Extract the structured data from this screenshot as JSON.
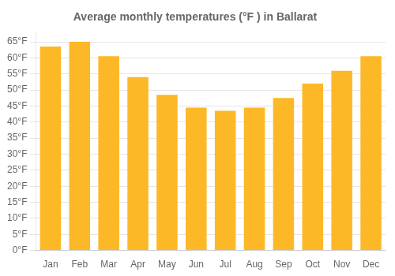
{
  "chart_data": {
    "type": "bar",
    "title": "Average monthly temperatures (°F ) in Ballarat",
    "categories": [
      "Jan",
      "Feb",
      "Mar",
      "Apr",
      "May",
      "Jun",
      "Jul",
      "Aug",
      "Sep",
      "Oct",
      "Nov",
      "Dec"
    ],
    "values": [
      63.5,
      65.0,
      60.5,
      54.0,
      48.5,
      44.5,
      43.5,
      44.5,
      47.5,
      52.0,
      56.0,
      60.5
    ],
    "color": "#FDB827",
    "ylim": [
      0,
      68
    ],
    "yticks": [
      {
        "value": 0,
        "label": "0°F"
      },
      {
        "value": 5,
        "label": "5°F"
      },
      {
        "value": 10,
        "label": "10°F"
      },
      {
        "value": 15,
        "label": "15°F"
      },
      {
        "value": 20,
        "label": "20°F"
      },
      {
        "value": 25,
        "label": "25°F"
      },
      {
        "value": 30,
        "label": "30°F"
      },
      {
        "value": 35,
        "label": "35°F"
      },
      {
        "value": 40,
        "label": "40°F"
      },
      {
        "value": 45,
        "label": "45°F"
      },
      {
        "value": 50,
        "label": "50°F"
      },
      {
        "value": 55,
        "label": "55°F"
      },
      {
        "value": 60,
        "label": "60°F"
      },
      {
        "value": 65,
        "label": "65°F"
      }
    ],
    "grid": true
  }
}
